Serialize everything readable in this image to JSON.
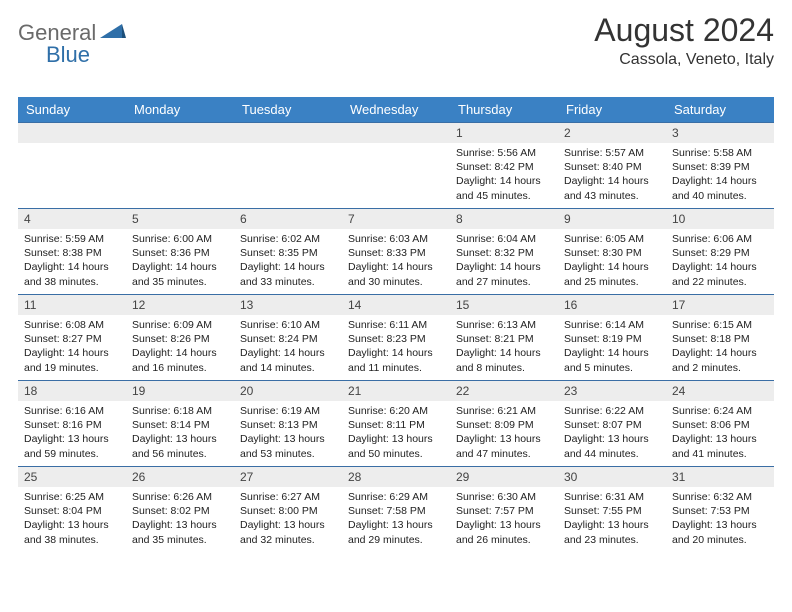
{
  "brand": {
    "general": "General",
    "blue": "Blue"
  },
  "title": "August 2024",
  "location": "Cassola, Veneto, Italy",
  "colors": {
    "header_bg": "#3a81c4",
    "header_text": "#ffffff",
    "daynum_bg": "#ededed",
    "row_border": "#3a6ea5",
    "logo_gray": "#6a6a6a",
    "logo_blue": "#2f6fa8"
  },
  "weekdays": [
    "Sunday",
    "Monday",
    "Tuesday",
    "Wednesday",
    "Thursday",
    "Friday",
    "Saturday"
  ],
  "weeks": [
    [
      {
        "num": "",
        "lines": []
      },
      {
        "num": "",
        "lines": []
      },
      {
        "num": "",
        "lines": []
      },
      {
        "num": "",
        "lines": []
      },
      {
        "num": "1",
        "lines": [
          "Sunrise: 5:56 AM",
          "Sunset: 8:42 PM",
          "Daylight: 14 hours and 45 minutes."
        ]
      },
      {
        "num": "2",
        "lines": [
          "Sunrise: 5:57 AM",
          "Sunset: 8:40 PM",
          "Daylight: 14 hours and 43 minutes."
        ]
      },
      {
        "num": "3",
        "lines": [
          "Sunrise: 5:58 AM",
          "Sunset: 8:39 PM",
          "Daylight: 14 hours and 40 minutes."
        ]
      }
    ],
    [
      {
        "num": "4",
        "lines": [
          "Sunrise: 5:59 AM",
          "Sunset: 8:38 PM",
          "Daylight: 14 hours and 38 minutes."
        ]
      },
      {
        "num": "5",
        "lines": [
          "Sunrise: 6:00 AM",
          "Sunset: 8:36 PM",
          "Daylight: 14 hours and 35 minutes."
        ]
      },
      {
        "num": "6",
        "lines": [
          "Sunrise: 6:02 AM",
          "Sunset: 8:35 PM",
          "Daylight: 14 hours and 33 minutes."
        ]
      },
      {
        "num": "7",
        "lines": [
          "Sunrise: 6:03 AM",
          "Sunset: 8:33 PM",
          "Daylight: 14 hours and 30 minutes."
        ]
      },
      {
        "num": "8",
        "lines": [
          "Sunrise: 6:04 AM",
          "Sunset: 8:32 PM",
          "Daylight: 14 hours and 27 minutes."
        ]
      },
      {
        "num": "9",
        "lines": [
          "Sunrise: 6:05 AM",
          "Sunset: 8:30 PM",
          "Daylight: 14 hours and 25 minutes."
        ]
      },
      {
        "num": "10",
        "lines": [
          "Sunrise: 6:06 AM",
          "Sunset: 8:29 PM",
          "Daylight: 14 hours and 22 minutes."
        ]
      }
    ],
    [
      {
        "num": "11",
        "lines": [
          "Sunrise: 6:08 AM",
          "Sunset: 8:27 PM",
          "Daylight: 14 hours and 19 minutes."
        ]
      },
      {
        "num": "12",
        "lines": [
          "Sunrise: 6:09 AM",
          "Sunset: 8:26 PM",
          "Daylight: 14 hours and 16 minutes."
        ]
      },
      {
        "num": "13",
        "lines": [
          "Sunrise: 6:10 AM",
          "Sunset: 8:24 PM",
          "Daylight: 14 hours and 14 minutes."
        ]
      },
      {
        "num": "14",
        "lines": [
          "Sunrise: 6:11 AM",
          "Sunset: 8:23 PM",
          "Daylight: 14 hours and 11 minutes."
        ]
      },
      {
        "num": "15",
        "lines": [
          "Sunrise: 6:13 AM",
          "Sunset: 8:21 PM",
          "Daylight: 14 hours and 8 minutes."
        ]
      },
      {
        "num": "16",
        "lines": [
          "Sunrise: 6:14 AM",
          "Sunset: 8:19 PM",
          "Daylight: 14 hours and 5 minutes."
        ]
      },
      {
        "num": "17",
        "lines": [
          "Sunrise: 6:15 AM",
          "Sunset: 8:18 PM",
          "Daylight: 14 hours and 2 minutes."
        ]
      }
    ],
    [
      {
        "num": "18",
        "lines": [
          "Sunrise: 6:16 AM",
          "Sunset: 8:16 PM",
          "Daylight: 13 hours and 59 minutes."
        ]
      },
      {
        "num": "19",
        "lines": [
          "Sunrise: 6:18 AM",
          "Sunset: 8:14 PM",
          "Daylight: 13 hours and 56 minutes."
        ]
      },
      {
        "num": "20",
        "lines": [
          "Sunrise: 6:19 AM",
          "Sunset: 8:13 PM",
          "Daylight: 13 hours and 53 minutes."
        ]
      },
      {
        "num": "21",
        "lines": [
          "Sunrise: 6:20 AM",
          "Sunset: 8:11 PM",
          "Daylight: 13 hours and 50 minutes."
        ]
      },
      {
        "num": "22",
        "lines": [
          "Sunrise: 6:21 AM",
          "Sunset: 8:09 PM",
          "Daylight: 13 hours and 47 minutes."
        ]
      },
      {
        "num": "23",
        "lines": [
          "Sunrise: 6:22 AM",
          "Sunset: 8:07 PM",
          "Daylight: 13 hours and 44 minutes."
        ]
      },
      {
        "num": "24",
        "lines": [
          "Sunrise: 6:24 AM",
          "Sunset: 8:06 PM",
          "Daylight: 13 hours and 41 minutes."
        ]
      }
    ],
    [
      {
        "num": "25",
        "lines": [
          "Sunrise: 6:25 AM",
          "Sunset: 8:04 PM",
          "Daylight: 13 hours and 38 minutes."
        ]
      },
      {
        "num": "26",
        "lines": [
          "Sunrise: 6:26 AM",
          "Sunset: 8:02 PM",
          "Daylight: 13 hours and 35 minutes."
        ]
      },
      {
        "num": "27",
        "lines": [
          "Sunrise: 6:27 AM",
          "Sunset: 8:00 PM",
          "Daylight: 13 hours and 32 minutes."
        ]
      },
      {
        "num": "28",
        "lines": [
          "Sunrise: 6:29 AM",
          "Sunset: 7:58 PM",
          "Daylight: 13 hours and 29 minutes."
        ]
      },
      {
        "num": "29",
        "lines": [
          "Sunrise: 6:30 AM",
          "Sunset: 7:57 PM",
          "Daylight: 13 hours and 26 minutes."
        ]
      },
      {
        "num": "30",
        "lines": [
          "Sunrise: 6:31 AM",
          "Sunset: 7:55 PM",
          "Daylight: 13 hours and 23 minutes."
        ]
      },
      {
        "num": "31",
        "lines": [
          "Sunrise: 6:32 AM",
          "Sunset: 7:53 PM",
          "Daylight: 13 hours and 20 minutes."
        ]
      }
    ]
  ]
}
